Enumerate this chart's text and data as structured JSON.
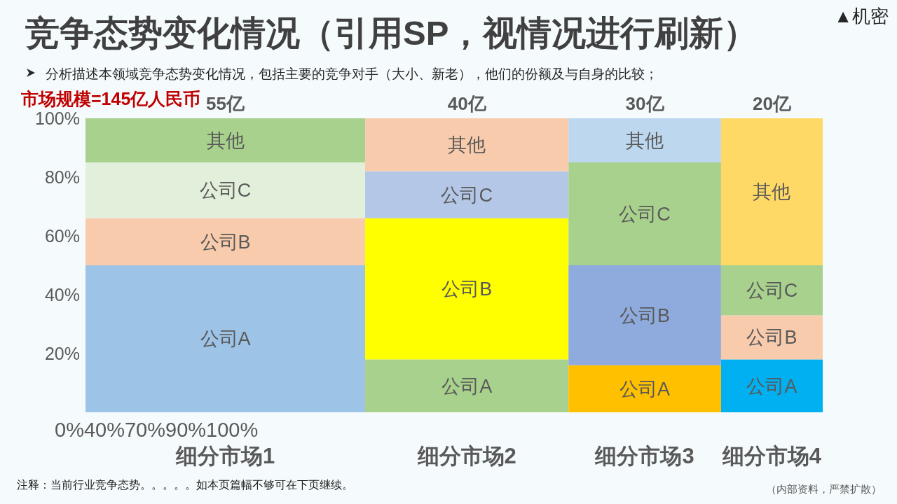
{
  "chart_data": {
    "type": "bar",
    "title": "竞争态势变化情况（引用SP，视情况进行刷新）",
    "subtitle": "分析描述本领域竞争态势变化情况，包括主要的竞争对手（大小、新老），他们的份额及与自身的比较；",
    "categories": [
      "细分市场1",
      "细分市场2",
      "细分市场3",
      "细分市场4"
    ],
    "series": [
      {
        "name": "公司A",
        "colors": [
          "#9dc3e6",
          "#a9d18e",
          "#ffc000",
          "#00b0f0"
        ],
        "values": [
          50,
          18,
          16,
          18
        ]
      },
      {
        "name": "公司B",
        "colors": [
          "#f8cbad",
          "#ffff00",
          "#8faadc",
          "#f8cbad"
        ],
        "values": [
          16,
          48,
          34,
          15
        ]
      },
      {
        "name": "公司C",
        "colors": [
          "#e2efda",
          "#b4c7e7",
          "#a9d18e",
          "#a9d18e"
        ],
        "values": [
          19,
          16,
          35,
          17
        ]
      },
      {
        "name": "其他",
        "colors": [
          "#a9d18e",
          "#f8cbad",
          "#bdd7ee",
          "#ffd966"
        ],
        "values": [
          15,
          18,
          15,
          50
        ]
      }
    ],
    "stacked": true,
    "ylim": [
      0,
      100
    ],
    "yticks": [
      {
        "value": 20,
        "label": "20%"
      },
      {
        "value": 40,
        "label": "40%"
      },
      {
        "value": 60,
        "label": "60%"
      },
      {
        "value": 80,
        "label": "80%"
      },
      {
        "value": 100,
        "label": "100%"
      }
    ],
    "annotations": [
      "▲机密",
      "市场规模=145亿人民币",
      {
        "text": "55亿",
        "x": "细分市场1",
        "y": 100
      },
      {
        "text": "40亿",
        "x": "细分市场2",
        "y": 100
      },
      {
        "text": "30亿",
        "x": "细分市场3",
        "y": 100
      },
      {
        "text": "20亿",
        "x": "细分市场4",
        "y": 100
      },
      "0%40%70%90%100%",
      "注释：当前行业竞争态势。。。。。如本页篇幅不够可在下页继续。",
      "（内部资料，严禁扩散）"
    ]
  }
}
